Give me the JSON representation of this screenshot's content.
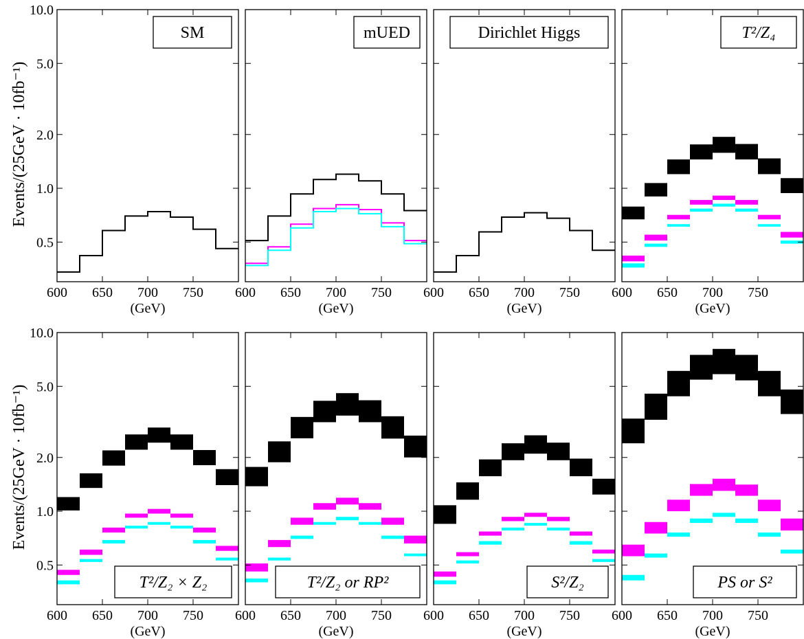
{
  "figure": {
    "y_axis_label": "Events/(25GeV · 10fb⁻¹)",
    "x_unit_label": "(GeV)"
  },
  "colors": {
    "total": "#000000",
    "magenta": "#ff00ff",
    "cyan": "#00ffff"
  },
  "chart_data": [
    {
      "type": "histogram",
      "label": "SM",
      "x_edges": [
        600,
        625,
        650,
        675,
        700,
        725,
        750,
        775,
        800
      ],
      "x_ticks": [
        600,
        650,
        700,
        750
      ],
      "ylim": [
        0.3,
        10.0
      ],
      "y_scale": "log",
      "y_ticks": [
        "10.0",
        "5.0",
        "2.0",
        "1.0",
        "0.5"
      ],
      "series": [
        {
          "color": "total",
          "style": "line",
          "values": [
            0.34,
            0.42,
            0.58,
            0.7,
            0.74,
            0.69,
            0.59,
            0.46
          ]
        }
      ]
    },
    {
      "type": "histogram",
      "label": "mUED",
      "x_edges": [
        600,
        625,
        650,
        675,
        700,
        725,
        750,
        775,
        800
      ],
      "x_ticks": [
        600,
        650,
        700,
        750
      ],
      "ylim": [
        0.3,
        10.0
      ],
      "y_scale": "log",
      "y_ticks": [
        "10.0",
        "5.0",
        "2.0",
        "1.0",
        "0.5"
      ],
      "series": [
        {
          "color": "total",
          "style": "line",
          "values": [
            0.51,
            0.7,
            0.93,
            1.12,
            1.2,
            1.1,
            0.93,
            0.75
          ]
        },
        {
          "color": "magenta",
          "style": "line",
          "values": [
            0.38,
            0.47,
            0.63,
            0.77,
            0.81,
            0.76,
            0.64,
            0.51
          ]
        },
        {
          "color": "cyan",
          "style": "line",
          "values": [
            0.37,
            0.45,
            0.6,
            0.74,
            0.77,
            0.72,
            0.61,
            0.49
          ]
        }
      ]
    },
    {
      "type": "histogram",
      "label": "Dirichlet Higgs",
      "x_edges": [
        600,
        625,
        650,
        675,
        700,
        725,
        750,
        775,
        800
      ],
      "x_ticks": [
        600,
        650,
        700,
        750
      ],
      "ylim": [
        0.3,
        10.0
      ],
      "y_scale": "log",
      "y_ticks": [
        "10.0",
        "5.0",
        "2.0",
        "1.0",
        "0.5"
      ],
      "series": [
        {
          "color": "total",
          "style": "line",
          "values": [
            0.34,
            0.42,
            0.57,
            0.69,
            0.73,
            0.68,
            0.58,
            0.45
          ]
        }
      ]
    },
    {
      "type": "histogram",
      "label": "T²/Z₄",
      "x_edges": [
        600,
        625,
        650,
        675,
        700,
        725,
        750,
        775,
        800
      ],
      "x_ticks": [
        600,
        650,
        700,
        750
      ],
      "ylim": [
        0.3,
        10.0
      ],
      "y_scale": "log",
      "y_ticks": [
        "10.0",
        "5.0",
        "2.0",
        "1.0",
        "0.5"
      ],
      "series": [
        {
          "color": "total",
          "style": "band",
          "low": [
            0.67,
            0.9,
            1.2,
            1.45,
            1.58,
            1.45,
            1.2,
            0.94
          ],
          "high": [
            0.79,
            1.07,
            1.45,
            1.76,
            1.94,
            1.77,
            1.47,
            1.14
          ]
        },
        {
          "color": "magenta",
          "style": "band",
          "low": [
            0.39,
            0.51,
            0.67,
            0.81,
            0.86,
            0.81,
            0.67,
            0.53
          ],
          "high": [
            0.42,
            0.55,
            0.71,
            0.86,
            0.91,
            0.86,
            0.71,
            0.57
          ]
        },
        {
          "color": "cyan",
          "style": "band",
          "low": [
            0.36,
            0.47,
            0.61,
            0.74,
            0.79,
            0.74,
            0.61,
            0.49
          ],
          "high": [
            0.38,
            0.49,
            0.63,
            0.77,
            0.82,
            0.77,
            0.63,
            0.51
          ]
        }
      ]
    },
    {
      "type": "histogram",
      "label": "T²/Z₂ × Z₂",
      "x_edges": [
        600,
        625,
        650,
        675,
        700,
        725,
        750,
        775,
        800
      ],
      "x_ticks": [
        600,
        650,
        700,
        750
      ],
      "ylim": [
        0.3,
        10.0
      ],
      "y_scale": "log",
      "y_ticks": [
        "10.0",
        "5.0",
        "2.0",
        "1.0",
        "0.5"
      ],
      "series": [
        {
          "color": "total",
          "style": "band",
          "low": [
            1.01,
            1.35,
            1.8,
            2.21,
            2.42,
            2.21,
            1.81,
            1.4
          ],
          "high": [
            1.2,
            1.63,
            2.19,
            2.69,
            2.94,
            2.69,
            2.2,
            1.72
          ]
        },
        {
          "color": "magenta",
          "style": "band",
          "low": [
            0.44,
            0.57,
            0.76,
            0.92,
            0.97,
            0.92,
            0.76,
            0.6
          ],
          "high": [
            0.47,
            0.61,
            0.81,
            0.97,
            1.03,
            0.97,
            0.81,
            0.64
          ]
        },
        {
          "color": "cyan",
          "style": "band",
          "low": [
            0.39,
            0.52,
            0.66,
            0.8,
            0.84,
            0.8,
            0.66,
            0.53
          ],
          "high": [
            0.41,
            0.54,
            0.69,
            0.83,
            0.87,
            0.83,
            0.69,
            0.55
          ]
        }
      ]
    },
    {
      "type": "histogram",
      "label": "T²/Z₂ or RP²",
      "x_edges": [
        600,
        625,
        650,
        675,
        700,
        725,
        750,
        775,
        800
      ],
      "x_ticks": [
        600,
        650,
        700,
        750
      ],
      "ylim": [
        0.3,
        10.0
      ],
      "y_scale": "log",
      "y_ticks": [
        "10.0",
        "5.0",
        "2.0",
        "1.0",
        "0.5"
      ],
      "series": [
        {
          "color": "total",
          "style": "band",
          "low": [
            1.38,
            1.88,
            2.56,
            3.15,
            3.43,
            3.15,
            2.55,
            2.0
          ],
          "high": [
            1.77,
            2.46,
            3.37,
            4.15,
            4.58,
            4.18,
            3.4,
            2.65
          ]
        },
        {
          "color": "magenta",
          "style": "band",
          "low": [
            0.46,
            0.63,
            0.84,
            1.02,
            1.09,
            1.02,
            0.84,
            0.66
          ],
          "high": [
            0.51,
            0.69,
            0.92,
            1.11,
            1.19,
            1.11,
            0.92,
            0.73
          ]
        },
        {
          "color": "cyan",
          "style": "band",
          "low": [
            0.4,
            0.53,
            0.7,
            0.84,
            0.89,
            0.84,
            0.7,
            0.56
          ],
          "high": [
            0.42,
            0.55,
            0.73,
            0.87,
            0.93,
            0.87,
            0.73,
            0.58
          ]
        }
      ]
    },
    {
      "type": "histogram",
      "label": "S²/Z₂",
      "x_edges": [
        600,
        625,
        650,
        675,
        700,
        725,
        750,
        775,
        800
      ],
      "x_ticks": [
        600,
        650,
        700,
        750
      ],
      "ylim": [
        0.3,
        10.0
      ],
      "y_scale": "log",
      "y_ticks": [
        "10.0",
        "5.0",
        "2.0",
        "1.0",
        "0.5"
      ],
      "series": [
        {
          "color": "total",
          "style": "band",
          "low": [
            0.85,
            1.16,
            1.57,
            1.93,
            2.1,
            1.93,
            1.57,
            1.24
          ],
          "high": [
            1.08,
            1.45,
            1.95,
            2.4,
            2.66,
            2.42,
            1.97,
            1.52
          ]
        },
        {
          "color": "magenta",
          "style": "band",
          "low": [
            0.43,
            0.56,
            0.73,
            0.88,
            0.93,
            0.88,
            0.73,
            0.58
          ],
          "high": [
            0.46,
            0.59,
            0.77,
            0.93,
            0.98,
            0.93,
            0.77,
            0.61
          ]
        },
        {
          "color": "cyan",
          "style": "band",
          "low": [
            0.39,
            0.51,
            0.65,
            0.78,
            0.83,
            0.78,
            0.65,
            0.52
          ],
          "high": [
            0.41,
            0.53,
            0.68,
            0.81,
            0.86,
            0.81,
            0.68,
            0.54
          ]
        }
      ]
    },
    {
      "type": "histogram",
      "label": "PS or S²",
      "x_edges": [
        600,
        625,
        650,
        675,
        700,
        725,
        750,
        775,
        800
      ],
      "x_ticks": [
        600,
        650,
        700,
        750
      ],
      "ylim": [
        0.3,
        10.0
      ],
      "y_scale": "log",
      "y_ticks": [
        "10.0",
        "5.0",
        "2.0",
        "1.0",
        "0.5"
      ],
      "series": [
        {
          "color": "total",
          "style": "band",
          "low": [
            2.4,
            3.25,
            4.4,
            5.45,
            5.85,
            5.4,
            4.4,
            3.5
          ],
          "high": [
            3.3,
            4.55,
            6.1,
            7.5,
            8.1,
            7.5,
            6.1,
            4.8
          ]
        },
        {
          "color": "magenta",
          "style": "band",
          "low": [
            0.56,
            0.75,
            1.0,
            1.22,
            1.3,
            1.22,
            1.0,
            0.78
          ],
          "high": [
            0.65,
            0.87,
            1.16,
            1.42,
            1.52,
            1.41,
            1.16,
            0.91
          ]
        },
        {
          "color": "cyan",
          "style": "band",
          "low": [
            0.41,
            0.55,
            0.72,
            0.86,
            0.93,
            0.86,
            0.72,
            0.58
          ],
          "high": [
            0.44,
            0.58,
            0.76,
            0.91,
            0.98,
            0.91,
            0.76,
            0.61
          ]
        }
      ]
    }
  ]
}
